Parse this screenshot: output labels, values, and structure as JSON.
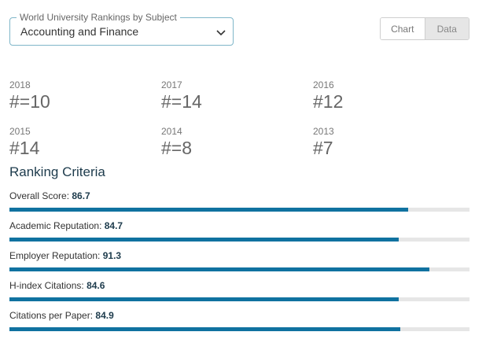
{
  "subject_select": {
    "legend": "World University Rankings by Subject",
    "value": "Accounting and Finance"
  },
  "view_toggle": {
    "chart_label": "Chart",
    "data_label": "Data",
    "active": "Data"
  },
  "rankings": [
    {
      "year": "2018",
      "rank": "#=10"
    },
    {
      "year": "2017",
      "rank": "#=14"
    },
    {
      "year": "2016",
      "rank": "#12"
    },
    {
      "year": "2015",
      "rank": "#14"
    },
    {
      "year": "2014",
      "rank": "#=8"
    },
    {
      "year": "2013",
      "rank": "#7"
    }
  ],
  "criteria": {
    "title": "Ranking Criteria",
    "items": [
      {
        "label": "Overall Score:",
        "score": "86.7",
        "fill_percent": 86.7
      },
      {
        "label": "Academic Reputation:",
        "score": "84.7",
        "fill_percent": 84.7
      },
      {
        "label": "Employer Reputation:",
        "score": "91.3",
        "fill_percent": 91.3
      },
      {
        "label": "H-index Citations:",
        "score": "84.6",
        "fill_percent": 84.6
      },
      {
        "label": "Citations per Paper:",
        "score": "84.9",
        "fill_percent": 84.9
      }
    ]
  },
  "colors": {
    "bar_fill": "#1072a0",
    "bar_track": "#e6e6e6",
    "select_border": "#7fb6c9"
  }
}
